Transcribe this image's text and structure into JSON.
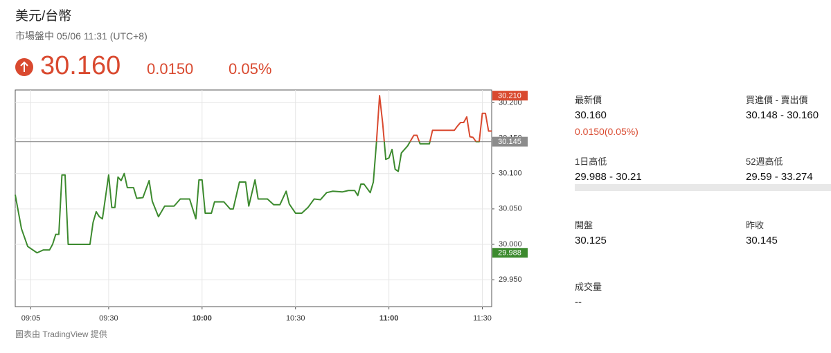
{
  "header": {
    "title": "美元/台幣",
    "subtitle": "市場盤中 05/06 11:31 (UTC+8)",
    "price": "30.160",
    "change": "0.0150",
    "change_pct": "0.05%"
  },
  "chart_data": {
    "type": "line",
    "x": [
      "09:00",
      "09:02",
      "09:04",
      "09:07",
      "09:09",
      "09:11",
      "09:12",
      "09:13",
      "09:14",
      "09:15",
      "09:16",
      "09:17",
      "09:24",
      "09:25",
      "09:26",
      "09:27",
      "09:28",
      "09:30",
      "09:31",
      "09:32",
      "09:33",
      "09:34",
      "09:35",
      "09:36",
      "09:38",
      "09:39",
      "09:41",
      "09:43",
      "09:44",
      "09:46",
      "09:48",
      "09:51",
      "09:53",
      "09:56",
      "09:58",
      "09:59",
      "10:00",
      "10:01",
      "10:03",
      "10:04",
      "10:07",
      "10:09",
      "10:10",
      "10:12",
      "10:14",
      "10:15",
      "10:17",
      "10:18",
      "10:21",
      "10:23",
      "10:25",
      "10:27",
      "10:28",
      "10:30",
      "10:32",
      "10:34",
      "10:36",
      "10:38",
      "10:40",
      "10:42",
      "10:45",
      "10:47",
      "10:49",
      "10:50",
      "10:51",
      "10:52",
      "10:54",
      "10:55",
      "10:56",
      "10:57",
      "10:58",
      "10:59",
      "11:00",
      "11:01",
      "11:02",
      "11:03",
      "11:04",
      "11:06",
      "11:08",
      "11:09",
      "11:10",
      "11:13",
      "11:14",
      "11:21",
      "11:22",
      "11:23",
      "11:24",
      "11:25",
      "11:26",
      "11:27",
      "11:28",
      "11:29",
      "11:30",
      "11:31",
      "11:32",
      "11:33"
    ],
    "values": [
      30.07,
      30.022,
      29.997,
      29.988,
      29.992,
      29.992,
      30.0,
      30.014,
      30.014,
      30.098,
      30.098,
      30.0,
      30.0,
      30.031,
      30.046,
      30.039,
      30.036,
      30.098,
      30.052,
      30.052,
      30.095,
      30.09,
      30.1,
      30.08,
      30.08,
      30.065,
      30.066,
      30.09,
      30.061,
      30.039,
      30.054,
      30.054,
      30.064,
      30.064,
      30.036,
      30.091,
      30.091,
      30.044,
      30.044,
      30.06,
      30.06,
      30.05,
      30.05,
      30.088,
      30.088,
      30.054,
      30.091,
      30.064,
      30.064,
      30.056,
      30.056,
      30.075,
      30.057,
      30.044,
      30.044,
      30.052,
      30.064,
      30.063,
      30.073,
      30.075,
      30.074,
      30.076,
      30.076,
      30.069,
      30.085,
      30.085,
      30.073,
      30.088,
      30.144,
      30.21,
      30.171,
      30.12,
      30.122,
      30.134,
      30.106,
      30.103,
      30.129,
      30.139,
      30.154,
      30.154,
      30.142,
      30.142,
      30.161,
      30.161,
      30.167,
      30.172,
      30.172,
      30.18,
      30.152,
      30.151,
      30.145,
      30.145,
      30.185,
      30.185,
      30.16,
      30.16
    ],
    "color": "#3c8a2e",
    "color_above": "#d9492f",
    "xlim": [
      "09:00",
      "11:33"
    ],
    "xticks": [
      "09:05",
      "09:30",
      "10:00",
      "10:30",
      "11:00",
      "11:30"
    ],
    "ylim": [
      29.912,
      30.218
    ],
    "yticks": [
      {
        "value": 29.95,
        "label": "29.950"
      },
      {
        "value": 30,
        "label": "30.000"
      },
      {
        "value": 30.05,
        "label": "30.050"
      },
      {
        "value": 30.1,
        "label": "30.100"
      },
      {
        "value": 30.15,
        "label": "30.150"
      },
      {
        "value": 30.2,
        "label": "30.200"
      }
    ],
    "grid": true,
    "reference_line": {
      "value": 30.145,
      "label": "30.145",
      "color": "#8c8c8c"
    },
    "high_tag": {
      "value": 30.21,
      "label": "30.210",
      "color": "#d9492f"
    },
    "low_tag": {
      "value": 29.988,
      "label": "29.988",
      "color": "#3c8a2e"
    }
  },
  "stats": [
    {
      "label": "最新價",
      "value": "30.160",
      "change": "0.0150(0.05%)"
    },
    {
      "label": "買進價 - 賣出價",
      "value": "30.148 - 30.160"
    },
    {
      "label": "1日高低",
      "value": "29.988 - 30.21"
    },
    {
      "label": "52週高低",
      "value": "29.59 - 33.274"
    },
    {
      "label": "開盤",
      "value": "30.125"
    },
    {
      "label": "昨收",
      "value": "30.145"
    },
    {
      "label": "成交量",
      "value": "--"
    }
  ],
  "footer": "圖表由 TradingView 提供"
}
